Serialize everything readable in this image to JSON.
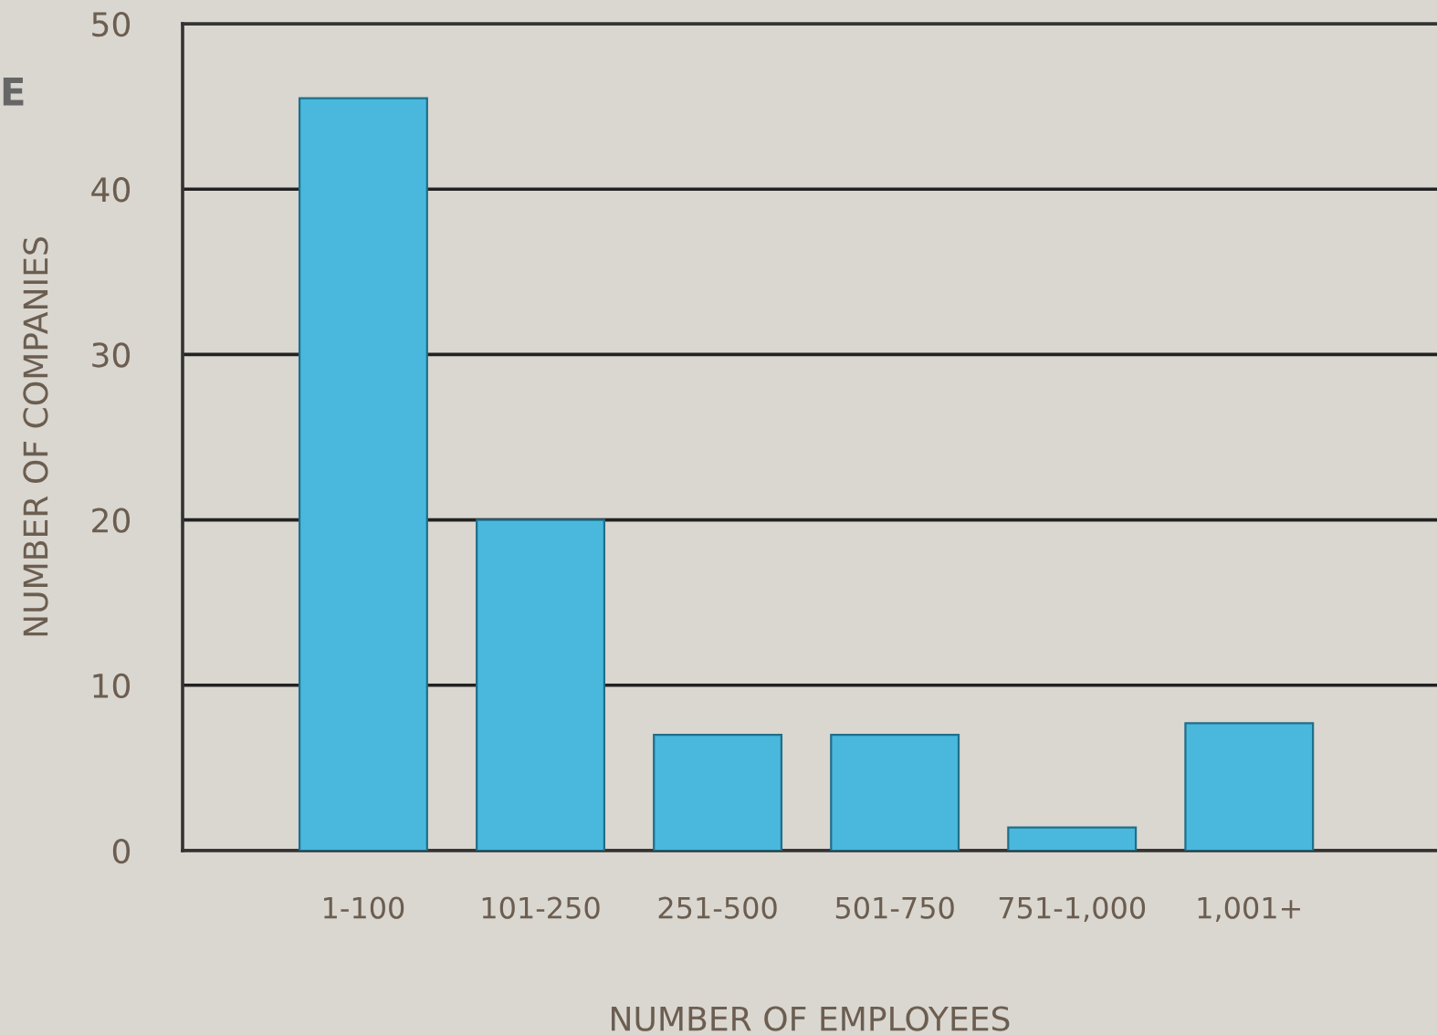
{
  "chart_data": {
    "type": "bar",
    "xlabel": "NUMBER OF EMPLOYEES",
    "ylabel": "NUMBER OF COMPANIES",
    "categories": [
      "1-100",
      "101-250",
      "251-500",
      "501-750",
      "751-1,000",
      "1,001+"
    ],
    "values": [
      45.5,
      20,
      7,
      7,
      1.4,
      7.7
    ],
    "color": "#4ab8dd",
    "ylim": [
      0,
      50
    ],
    "yticks": [
      0,
      10,
      20,
      30,
      40,
      50
    ],
    "grid": "y",
    "annotations": [
      "E"
    ]
  }
}
